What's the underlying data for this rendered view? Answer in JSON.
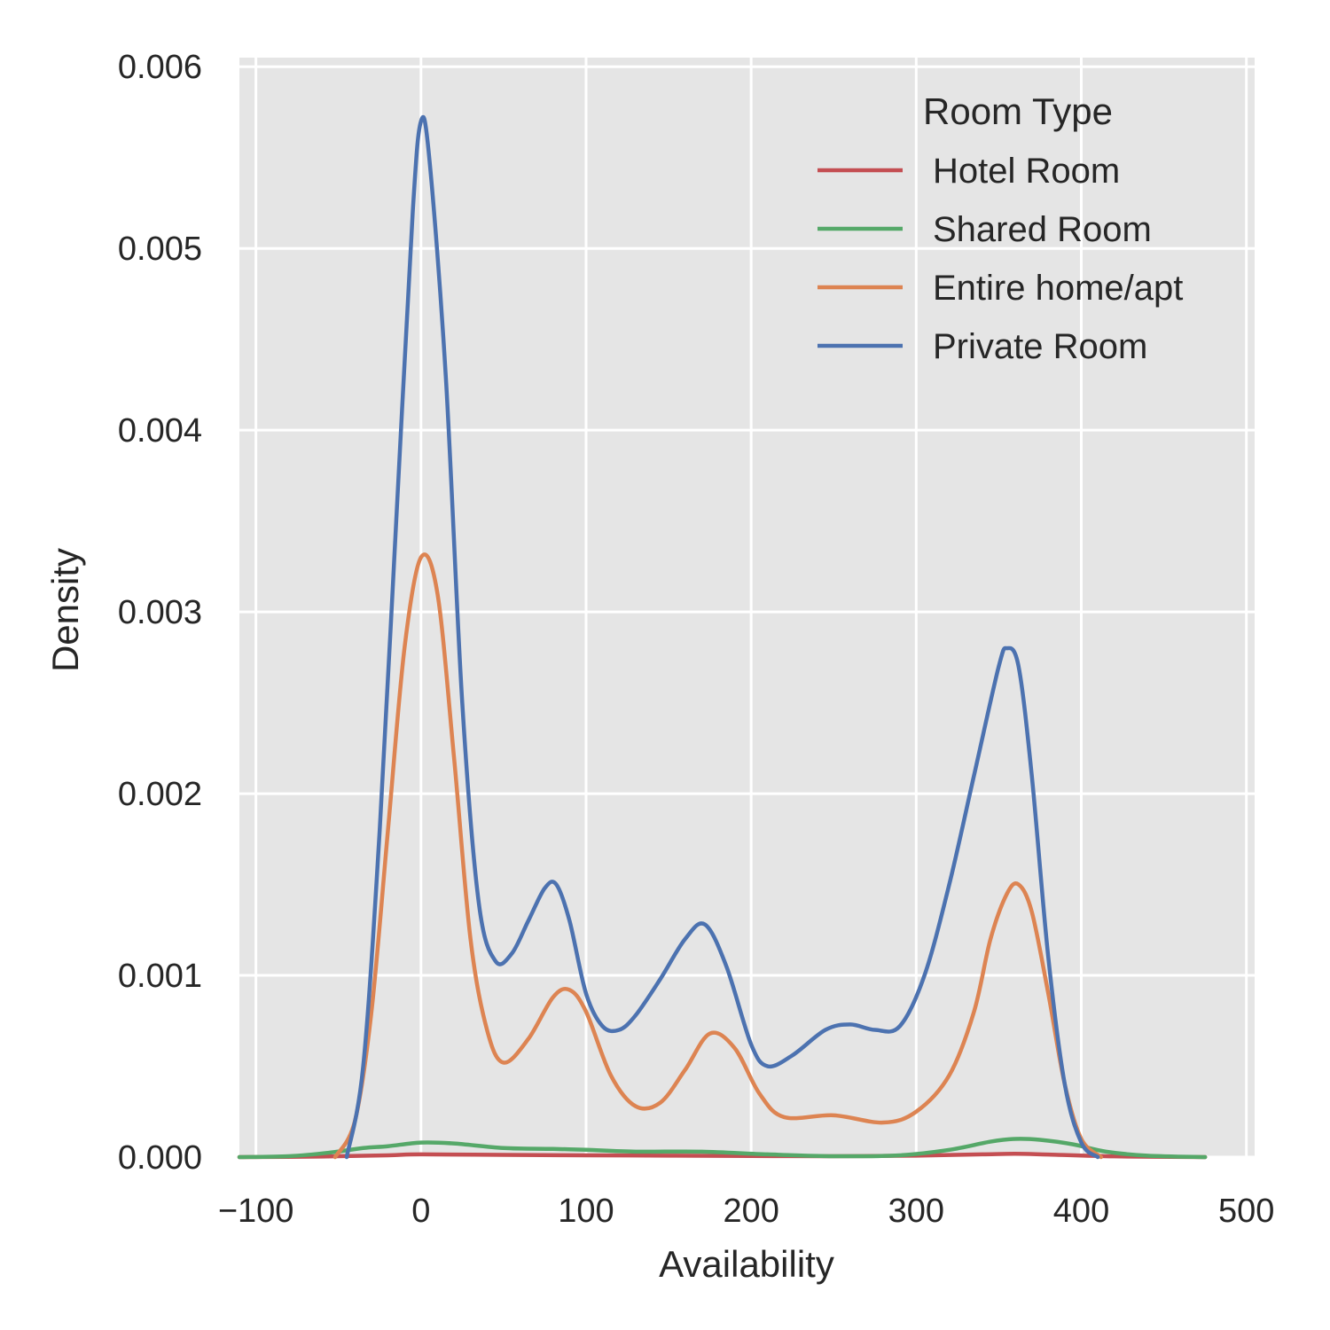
{
  "chart_data": {
    "type": "line",
    "title": "",
    "xlabel": "Availability",
    "ylabel": "Density",
    "xlim": [
      -110,
      505
    ],
    "ylim": [
      0,
      0.00605
    ],
    "xticks": [
      -100,
      0,
      100,
      200,
      300,
      400,
      500
    ],
    "xtick_labels": [
      "−100",
      "0",
      "100",
      "200",
      "300",
      "400",
      "500"
    ],
    "yticks": [
      0,
      0.001,
      0.002,
      0.003,
      0.004,
      0.005,
      0.006
    ],
    "ytick_labels": [
      "0.000",
      "0.001",
      "0.002",
      "0.003",
      "0.004",
      "0.005",
      "0.006"
    ],
    "grid": true,
    "background": "#e5e5e5",
    "legend": {
      "title": "Room Type",
      "placement": "top-right"
    },
    "series": [
      {
        "name": "Hotel Room",
        "color": "#c44e52",
        "x": [
          -110,
          -60,
          -20,
          0,
          50,
          100,
          150,
          200,
          250,
          300,
          340,
          360,
          380,
          420,
          475
        ],
        "y": [
          0,
          3e-06,
          1e-05,
          1.5e-05,
          1.2e-05,
          1e-05,
          8e-06,
          6e-06,
          5e-06,
          8e-06,
          1.5e-05,
          1.8e-05,
          1.4e-05,
          4e-06,
          0
        ]
      },
      {
        "name": "Shared Room",
        "color": "#55a868",
        "x": [
          -110,
          -80,
          -55,
          -35,
          -20,
          0,
          20,
          50,
          80,
          100,
          130,
          170,
          210,
          250,
          290,
          320,
          345,
          360,
          375,
          395,
          415,
          440,
          475
        ],
        "y": [
          0,
          5e-06,
          2.5e-05,
          5e-05,
          6e-05,
          8e-05,
          7.5e-05,
          5e-05,
          4.5e-05,
          4e-05,
          3e-05,
          3e-05,
          1.5e-05,
          5e-06,
          1e-05,
          4e-05,
          8.5e-05,
          0.0001,
          9.5e-05,
          7e-05,
          3e-05,
          8e-06,
          0
        ]
      },
      {
        "name": "Entire home/apt",
        "color": "#dd8452",
        "x": [
          -52,
          -40,
          -30,
          -20,
          -10,
          0,
          10,
          20,
          30,
          40,
          50,
          65,
          80,
          90,
          100,
          115,
          130,
          145,
          160,
          175,
          190,
          205,
          220,
          250,
          280,
          300,
          320,
          335,
          345,
          355,
          362,
          370,
          380,
          390,
          400,
          412
        ],
        "y": [
          0,
          0.0002,
          0.0008,
          0.0018,
          0.0028,
          0.0033,
          0.0031,
          0.0022,
          0.0012,
          0.0007,
          0.00052,
          0.00065,
          0.00088,
          0.00092,
          0.0008,
          0.00045,
          0.00028,
          0.0003,
          0.00048,
          0.00068,
          0.0006,
          0.00035,
          0.00022,
          0.00023,
          0.00019,
          0.00025,
          0.00045,
          0.0008,
          0.0012,
          0.00145,
          0.0015,
          0.00135,
          0.0009,
          0.0004,
          0.0001,
          0
        ]
      },
      {
        "name": "Private Room",
        "color": "#4c72b0",
        "x": [
          -45,
          -35,
          -25,
          -15,
          -5,
          0,
          5,
          15,
          25,
          35,
          45,
          55,
          65,
          75,
          82,
          90,
          100,
          110,
          120,
          130,
          145,
          160,
          172,
          185,
          200,
          210,
          225,
          245,
          260,
          275,
          290,
          305,
          320,
          335,
          350,
          355,
          362,
          370,
          380,
          390,
          400,
          410
        ],
        "y": [
          0,
          0.0005,
          0.0018,
          0.0035,
          0.0052,
          0.0057,
          0.0055,
          0.0043,
          0.0025,
          0.0014,
          0.00108,
          0.00112,
          0.0013,
          0.00148,
          0.0015,
          0.0013,
          0.0009,
          0.00072,
          0.0007,
          0.00078,
          0.00098,
          0.0012,
          0.00128,
          0.00105,
          0.00062,
          0.0005,
          0.00056,
          0.0007,
          0.00073,
          0.0007,
          0.00072,
          0.001,
          0.0015,
          0.0021,
          0.0027,
          0.0028,
          0.0027,
          0.0021,
          0.0011,
          0.0004,
          8e-05,
          0
        ]
      }
    ]
  }
}
